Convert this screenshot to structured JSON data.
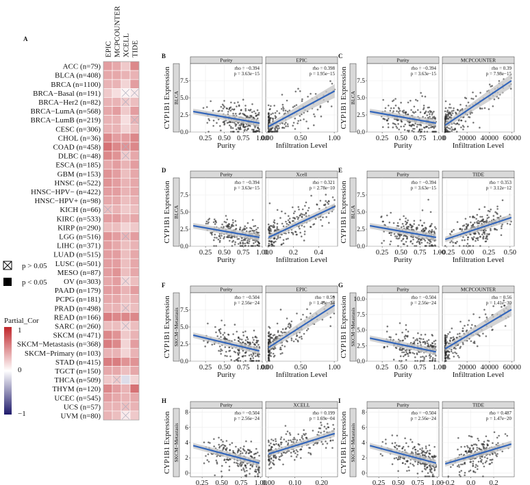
{
  "chart_data": [
    {
      "type": "heatmap",
      "panel": "A",
      "title": "",
      "columns": [
        "EPIC",
        "MCPCOUNTER",
        "XCELL",
        "TIDE"
      ],
      "rows": [
        "ACC (n=79)",
        "BLCA (n=408)",
        "BRCA (n=1100)",
        "BRCA−Basal (n=191)",
        "BRCA−Her2 (n=82)",
        "BRCA−LumA (n=568)",
        "BRCA−LumB (n=219)",
        "CESC (n=306)",
        "CHOL (n=36)",
        "COAD (n=458)",
        "DLBC (n=48)",
        "ESCA (n=185)",
        "GBM (n=153)",
        "HNSC (n=522)",
        "HNSC−HPV− (n=422)",
        "HNSC−HPV+ (n=98)",
        "KICH (n=66)",
        "KIRC (n=533)",
        "KIRP (n=290)",
        "LGG (n=516)",
        "LIHC (n=371)",
        "LUAD (n=515)",
        "LUSC (n=501)",
        "MESO (n=87)",
        "OV (n=303)",
        "PAAD (n=179)",
        "PCPG (n=181)",
        "PRAD (n=498)",
        "READ (n=166)",
        "SARC (n=260)",
        "SKCM (n=471)",
        "SKCM−Metastasis (n=368)",
        "SKCM−Primary (n=103)",
        "STAD (n=415)",
        "TGCT (n=150)",
        "THCA (n=509)",
        "THYM (n=120)",
        "UCEC (n=545)",
        "UCS (n=57)",
        "UVM (n=80)"
      ],
      "values": [
        [
          0.45,
          0.4,
          0.25,
          0.55
        ],
        [
          0.4,
          0.4,
          0.35,
          0.35
        ],
        [
          0.35,
          0.35,
          0.2,
          0.45
        ],
        [
          0.25,
          0.15,
          0.05,
          0.1
        ],
        [
          0.35,
          0.35,
          0.25,
          0.3
        ],
        [
          0.4,
          0.45,
          0.25,
          0.45
        ],
        [
          0.35,
          0.35,
          0.15,
          0.35
        ],
        [
          0.35,
          0.35,
          0.2,
          0.3
        ],
        [
          0.55,
          0.45,
          0.45,
          0.55
        ],
        [
          0.65,
          0.55,
          0.5,
          0.55
        ],
        [
          0.55,
          0.5,
          0.25,
          0.4
        ],
        [
          0.4,
          0.45,
          0.35,
          0.45
        ],
        [
          0.5,
          0.45,
          0.3,
          0.4
        ],
        [
          0.5,
          0.45,
          0.35,
          0.4
        ],
        [
          0.45,
          0.45,
          0.35,
          0.4
        ],
        [
          0.4,
          0.4,
          0.3,
          0.35
        ],
        [
          0.3,
          0.35,
          0.25,
          0.3
        ],
        [
          0.45,
          0.45,
          0.35,
          0.4
        ],
        [
          0.3,
          0.3,
          0.2,
          0.25
        ],
        [
          0.5,
          0.45,
          0.35,
          0.45
        ],
        [
          0.45,
          0.4,
          0.3,
          0.35
        ],
        [
          0.45,
          0.45,
          0.3,
          0.4
        ],
        [
          0.45,
          0.45,
          0.3,
          0.4
        ],
        [
          0.45,
          0.5,
          0.3,
          0.4
        ],
        [
          0.4,
          0.45,
          0.2,
          0.3
        ],
        [
          0.45,
          0.45,
          0.35,
          0.45
        ],
        [
          0.4,
          0.4,
          0.3,
          0.35
        ],
        [
          0.35,
          0.35,
          0.25,
          0.3
        ],
        [
          0.6,
          0.55,
          0.55,
          0.55
        ],
        [
          0.3,
          0.3,
          0.2,
          0.3
        ],
        [
          0.55,
          0.5,
          0.25,
          0.35
        ],
        [
          0.6,
          0.55,
          0.2,
          0.45
        ],
        [
          0.35,
          0.35,
          0.2,
          0.35
        ],
        [
          0.6,
          0.6,
          0.5,
          0.5
        ],
        [
          0.4,
          0.4,
          0.3,
          0.4
        ],
        [
          0.25,
          0.25,
          -0.15,
          0.2
        ],
        [
          0.55,
          0.45,
          0.35,
          0.65
        ],
        [
          0.45,
          0.4,
          0.35,
          0.4
        ],
        [
          0.35,
          0.35,
          0.3,
          0.35
        ],
        [
          0.35,
          0.3,
          0.1,
          0.25
        ]
      ],
      "nonsignificant": [
        [
          3,
          2
        ],
        [
          3,
          3
        ],
        [
          4,
          2
        ],
        [
          6,
          3
        ],
        [
          9,
          2
        ],
        [
          10,
          2
        ],
        [
          16,
          0
        ],
        [
          19,
          2
        ],
        [
          24,
          2
        ],
        [
          27,
          2
        ],
        [
          29,
          2
        ],
        [
          35,
          1
        ],
        [
          38,
          2
        ],
        [
          39,
          2
        ]
      ],
      "legend": {
        "sig_ns": "p > 0.05",
        "sig_s": "p < 0.05",
        "color_title": "Partial_Cor",
        "color_ticks": [
          "1",
          "0",
          "−1"
        ],
        "placement": "left"
      },
      "colors": {
        "high": "#c0262b",
        "mid": "#ffffff",
        "low": "#1f1a6b"
      }
    }
  ],
  "panels": [
    {
      "label": "B",
      "dataset": "BLCA",
      "method": "EPIC",
      "left_strip": "Purity",
      "right_strip": "EPIC",
      "rho_left": "rho = −0.394",
      "p_left": "p = 3.63e−15",
      "rho_right": "rho = 0.398",
      "p_right": "p = 1.95e−15",
      "ylabel": "CYP1B1 Expression",
      "ylim": [
        0,
        10
      ],
      "yticks": [
        "0.0",
        "2.5",
        "5.0",
        "7.5"
      ],
      "xlabel_left": "Purity",
      "xlabel_right": "Infiltration Level",
      "xlim_left": [
        0.05,
        1.0
      ],
      "xticks_left": [
        "0.25",
        "0.50",
        "0.75",
        "1.00"
      ],
      "xlim_right": [
        -0.02,
        1.05
      ],
      "xticks_right": [
        "0.00",
        "0.50",
        "1.00"
      ],
      "left_line": [
        3.0,
        1.3
      ],
      "right_line": [
        0.8,
        6.0
      ],
      "right_skew": "strong",
      "spread": 1.3
    },
    {
      "label": "C",
      "dataset": "BLCA",
      "method": "MCPCOUNTER",
      "left_strip": "Purity",
      "right_strip": "MCPCOUNTER",
      "rho_left": "rho = −0.394",
      "p_left": "p = 3.63e−15",
      "rho_right": "rho = 0.39",
      "p_right": "p = 7.98e−15",
      "ylabel": "CYP1B1 Expression",
      "ylim": [
        0,
        10
      ],
      "yticks": [
        "0.0",
        "2.5",
        "5.0",
        "7.5"
      ],
      "xlabel_left": "Purity",
      "xlabel_right": "Infiltration Level",
      "xlim_left": [
        0.05,
        1.0
      ],
      "xticks_left": [
        "0.25",
        "0.50",
        "0.75",
        "1.00"
      ],
      "xlim_right": [
        -2000,
        62000
      ],
      "xticks_right": [
        "0",
        "20000",
        "40000",
        "60000"
      ],
      "left_line": [
        3.0,
        1.3
      ],
      "right_line": [
        1.0,
        7.5
      ],
      "right_skew": "strong",
      "spread": 1.3
    },
    {
      "label": "D",
      "dataset": "BLCA",
      "method": "Xcell",
      "left_strip": "Purity",
      "right_strip": "Xcell",
      "rho_left": "rho = −0.394",
      "p_left": "p = 3.63e−15",
      "rho_right": "rho = 0.321",
      "p_right": "p = 2.78e−10",
      "ylabel": "CYP1B1 Expression",
      "ylim": [
        0,
        10
      ],
      "yticks": [
        "0.0",
        "2.5",
        "5.0",
        "7.5"
      ],
      "xlabel_left": "Purity",
      "xlabel_right": "Infiltration Level",
      "xlim_left": [
        0.05,
        1.0
      ],
      "xticks_left": [
        "0.25",
        "0.50",
        "0.75",
        "1.00"
      ],
      "xlim_right": [
        -0.02,
        0.55
      ],
      "xticks_right": [
        "0.0",
        "0.2",
        "0.4"
      ],
      "left_line": [
        3.0,
        1.3
      ],
      "right_line": [
        1.3,
        5.8
      ],
      "right_skew": "mild",
      "spread": 1.3
    },
    {
      "label": "E",
      "dataset": "BLCA",
      "method": "TIDE",
      "left_strip": "Purity",
      "right_strip": "TIDE",
      "rho_left": "rho = −0.394",
      "p_left": "p = 3.63e−15",
      "rho_right": "rho = 0.353",
      "p_right": "p = 3.12e−12",
      "ylabel": "CYP1B1 Expression",
      "ylim": [
        0,
        10
      ],
      "yticks": [
        "0.0",
        "2.5",
        "5.0",
        "7.5"
      ],
      "xlabel_left": "Purity",
      "xlabel_right": "Infiltration Level",
      "xlim_left": [
        0.05,
        1.0
      ],
      "xticks_left": [
        "0.25",
        "0.50",
        "0.75",
        "1.00"
      ],
      "xlim_right": [
        -0.3,
        0.55
      ],
      "xticks_right": [
        "−0.25",
        "0.00",
        "0.25",
        "0.50"
      ],
      "left_line": [
        3.0,
        1.3
      ],
      "right_line": [
        1.0,
        4.2
      ],
      "right_skew": "none",
      "spread": 1.3
    },
    {
      "label": "F",
      "dataset": "SKCM−Metastasis",
      "method": "EPIC",
      "left_strip": "Purity",
      "right_strip": "EPIC",
      "rho_left": "rho = −0.504",
      "p_left": "p = 2.56e−24",
      "rho_right": "rho = 0.59",
      "p_right": "p = 1.43e−34",
      "ylabel": "CYP1B1 Expression",
      "ylim": [
        0,
        10
      ],
      "yticks": [
        "0.0",
        "2.5",
        "5.0",
        "7.5"
      ],
      "xlabel_left": "Purity",
      "xlabel_right": "Infiltration Level",
      "xlim_left": [
        0.05,
        1.0
      ],
      "xticks_left": [
        "0.25",
        "0.50",
        "0.75",
        "1.00"
      ],
      "xlim_right": [
        -0.02,
        1.05
      ],
      "xticks_right": [
        "0.00",
        "0.50",
        "1.00"
      ],
      "left_line": [
        3.8,
        1.5
      ],
      "right_line": [
        2.0,
        8.2
      ],
      "right_skew": "strong",
      "spread": 1.3
    },
    {
      "label": "G",
      "dataset": "SKCM−Metastasis",
      "method": "MCPCOUNTER",
      "left_strip": "Purity",
      "right_strip": "MCPCOUNTER",
      "rho_left": "rho = −0.504",
      "p_left": "p = 2.56e−24",
      "rho_right": "rho = 0.56",
      "p_right": "p = 1.41e−30",
      "ylabel": "CYP1B1 Expression",
      "ylim": [
        0,
        11
      ],
      "yticks": [
        "0.0",
        "2.5",
        "5.0",
        "7.5",
        "10.0"
      ],
      "xlabel_left": "Purity",
      "xlabel_right": "Infiltration Level",
      "xlim_left": [
        0.05,
        1.0
      ],
      "xticks_left": [
        "0.25",
        "0.50",
        "0.75",
        "1.00"
      ],
      "xlim_right": [
        -2000,
        62000
      ],
      "xticks_right": [
        "0",
        "20000",
        "40000",
        "60000"
      ],
      "left_line": [
        3.7,
        1.5
      ],
      "right_line": [
        2.0,
        8.3
      ],
      "right_skew": "strong",
      "spread": 1.3
    },
    {
      "label": "H",
      "dataset": "SKCM−Metastasis",
      "method": "XCELL",
      "left_strip": "Purity",
      "right_strip": "XCELL",
      "rho_left": "rho = −0.504",
      "p_left": "p = 2.56e−24",
      "rho_right": "rho = 0.199",
      "p_right": "p = 1.69e−04",
      "ylabel": "CYP1B1 Expression",
      "ylim": [
        -0.5,
        8.5
      ],
      "yticks": [
        "0",
        "2",
        "4",
        "6",
        "8"
      ],
      "xlabel_left": "Purity",
      "xlabel_right": "Infiltration Level",
      "xlim_left": [
        0.1,
        1.02
      ],
      "xticks_left": [
        "0.25",
        "0.50",
        "0.75",
        "1.00"
      ],
      "xlim_right": [
        -0.01,
        0.26
      ],
      "xticks_right": [
        "0.00",
        "0.10",
        "0.20"
      ],
      "left_line": [
        3.6,
        1.3
      ],
      "right_line": [
        2.5,
        5.2
      ],
      "right_skew": "mild",
      "spread": 1.1
    },
    {
      "label": "I",
      "dataset": "SKCM−Metastasis",
      "method": "TIDE",
      "left_strip": "Purity",
      "right_strip": "TIDE",
      "rho_left": "rho = −0.504",
      "p_left": "p = 2.56e−24",
      "rho_right": "rho = 0.487",
      "p_right": "p = 1.47e−20",
      "ylabel": "CYP1B1 Expression",
      "ylim": [
        -0.5,
        8.5
      ],
      "yticks": [
        "0",
        "2",
        "4",
        "6",
        "8"
      ],
      "xlabel_left": "Purity",
      "xlabel_right": "Infiltration Level",
      "xlim_left": [
        0.1,
        1.02
      ],
      "xticks_left": [
        "0.25",
        "0.50",
        "0.75",
        "1.00"
      ],
      "xlim_right": [
        -0.25,
        0.38
      ],
      "xticks_right": [
        "−0.2",
        "0.0",
        "0.2"
      ],
      "left_line": [
        3.6,
        1.3
      ],
      "right_line": [
        1.2,
        3.8
      ],
      "right_skew": "none",
      "spread": 1.1
    }
  ],
  "colors": {
    "regression": "#3366bb",
    "ci_band": "#c8c8c8",
    "points": "#333333",
    "strip_fill": "#d9d9d9",
    "grid": "#ebebeb"
  }
}
